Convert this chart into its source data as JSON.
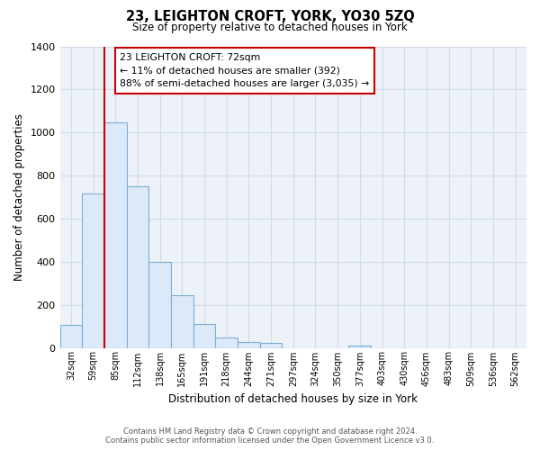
{
  "title": "23, LEIGHTON CROFT, YORK, YO30 5ZQ",
  "subtitle": "Size of property relative to detached houses in York",
  "xlabel": "Distribution of detached houses by size in York",
  "ylabel": "Number of detached properties",
  "bar_categories": [
    "32sqm",
    "59sqm",
    "85sqm",
    "112sqm",
    "138sqm",
    "165sqm",
    "191sqm",
    "218sqm",
    "244sqm",
    "271sqm",
    "297sqm",
    "324sqm",
    "350sqm",
    "377sqm",
    "403sqm",
    "430sqm",
    "456sqm",
    "483sqm",
    "509sqm",
    "536sqm",
    "562sqm"
  ],
  "bar_values": [
    107,
    718,
    1047,
    750,
    400,
    245,
    110,
    48,
    28,
    22,
    0,
    0,
    0,
    10,
    0,
    0,
    0,
    0,
    0,
    0,
    0
  ],
  "bar_color": "#dce9f8",
  "bar_edge_color": "#7bafd4",
  "grid_color": "#d0dce8",
  "annotation_box_color": "#ffffff",
  "annotation_box_edge_color": "#cc0000",
  "red_line_color": "#cc0000",
  "annotation_text_line1": "23 LEIGHTON CROFT: 72sqm",
  "annotation_text_line2": "← 11% of detached houses are smaller (392)",
  "annotation_text_line3": "88% of semi-detached houses are larger (3,035) →",
  "ylim": [
    0,
    1400
  ],
  "yticks": [
    0,
    200,
    400,
    600,
    800,
    1000,
    1200,
    1400
  ],
  "footer_line1": "Contains HM Land Registry data © Crown copyright and database right 2024.",
  "footer_line2": "Contains public sector information licensed under the Open Government Licence v3.0.",
  "bg_color": "#ffffff",
  "plot_bg_color": "#edf2f9"
}
